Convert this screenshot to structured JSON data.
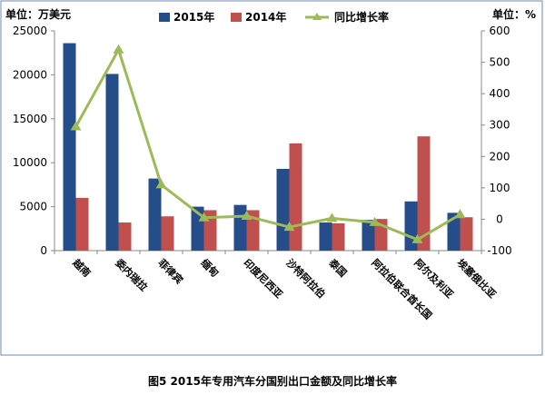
{
  "chart_data": {
    "type": "bar",
    "caption": "图5   2015年专用汽车分国别出口金额及同比增长率",
    "left_unit_label": "单位：万美元",
    "right_unit_label": "单位：%",
    "categories": [
      "越南",
      "委内瑞拉",
      "菲律宾",
      "缅甸",
      "印度尼西亚",
      "沙特阿拉伯",
      "泰国",
      "阿拉伯联合酋长国",
      "阿尔及利亚",
      "埃塞俄比亚"
    ],
    "series": [
      {
        "name": "2015年",
        "type": "bar",
        "axis": "left",
        "color": "#244d8a",
        "values": [
          23600,
          20100,
          8200,
          5000,
          5200,
          9300,
          3200,
          3500,
          5600,
          4300
        ]
      },
      {
        "name": "2014年",
        "type": "bar",
        "axis": "left",
        "color": "#c0504d",
        "values": [
          6000,
          3200,
          3900,
          4600,
          4600,
          12200,
          3100,
          3600,
          13000,
          3800
        ]
      },
      {
        "name": "同比增长率",
        "type": "line",
        "axis": "right",
        "color": "#9bbb59",
        "values": [
          295,
          540,
          110,
          5,
          10,
          -25,
          3,
          -10,
          -65,
          15
        ]
      }
    ],
    "y_left": {
      "min": 0,
      "max": 25000,
      "ticks": [
        0,
        5000,
        10000,
        15000,
        20000,
        25000
      ]
    },
    "y_right": {
      "min": -100,
      "max": 600,
      "ticks": [
        -100,
        0,
        100,
        200,
        300,
        400,
        500,
        600
      ]
    },
    "legend_position": "top",
    "grid": false
  }
}
